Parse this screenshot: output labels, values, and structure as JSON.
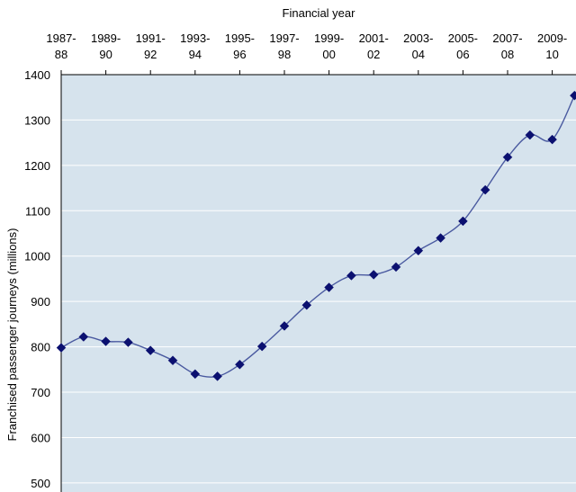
{
  "chart_data": {
    "type": "line",
    "title": "",
    "xlabel": "Financial year",
    "ylabel": "Franchised passenger journeys (millions)",
    "x_axis_position": "top",
    "ylim": [
      480,
      1400
    ],
    "yticks": [
      500,
      600,
      700,
      800,
      900,
      1000,
      1100,
      1200,
      1300,
      1400
    ],
    "grid": "horizontal",
    "colors": {
      "plot_bg": "#d6e3ed",
      "grid": "#ffffff",
      "line": "#4a5aa0",
      "marker": "#0b1070",
      "frame": "#000000"
    },
    "categories": [
      "1987-88",
      "1988-89",
      "1989-90",
      "1990-91",
      "1991-92",
      "1992-93",
      "1993-94",
      "1994-95",
      "1995-96",
      "1996-97",
      "1997-98",
      "1998-99",
      "1999-00",
      "2000-01",
      "2001-02",
      "2002-03",
      "2003-04",
      "2004-05",
      "2005-06",
      "2006-07",
      "2007-08",
      "2008-09",
      "2009-10",
      "2010-11"
    ],
    "tick_labels": [
      {
        "line1": "1987-",
        "line2": "88"
      },
      {
        "line1": "1989-",
        "line2": "90"
      },
      {
        "line1": "1991-",
        "line2": "92"
      },
      {
        "line1": "1993-",
        "line2": "94"
      },
      {
        "line1": "1995-",
        "line2": "96"
      },
      {
        "line1": "1997-",
        "line2": "98"
      },
      {
        "line1": "1999-",
        "line2": "00"
      },
      {
        "line1": "2001-",
        "line2": "02"
      },
      {
        "line1": "2003-",
        "line2": "04"
      },
      {
        "line1": "2005-",
        "line2": "06"
      },
      {
        "line1": "2007-",
        "line2": "08"
      },
      {
        "line1": "2009-",
        "line2": "10"
      }
    ],
    "series": [
      {
        "name": "Franchised passenger journeys",
        "values": [
          798,
          822,
          812,
          810,
          792,
          770,
          740,
          735,
          761,
          801,
          846,
          892,
          931,
          957,
          959,
          976,
          1012,
          1040,
          1077,
          1146,
          1218,
          1267,
          1257,
          1354
        ]
      }
    ]
  }
}
